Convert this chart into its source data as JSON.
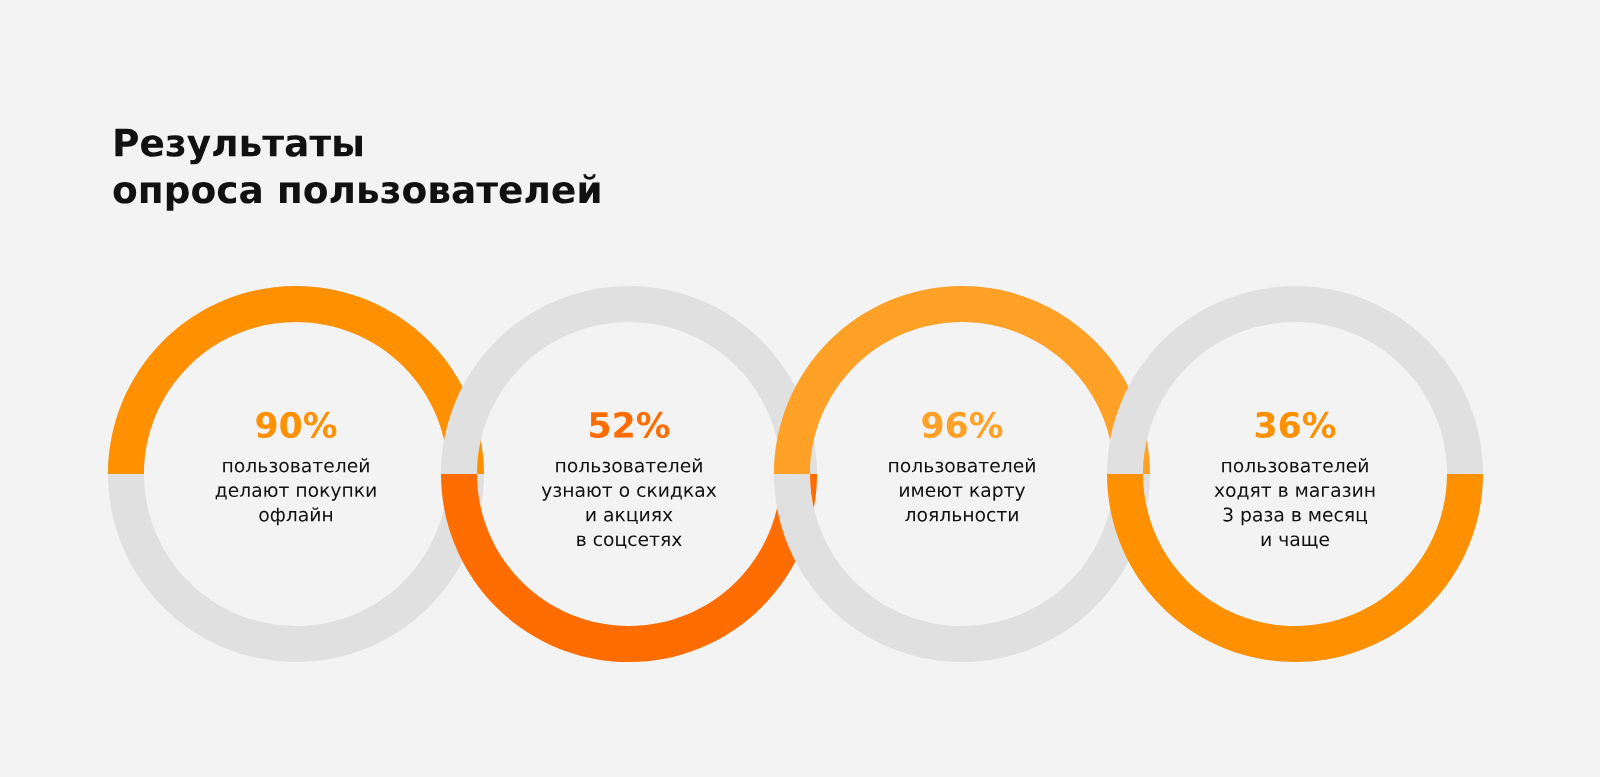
{
  "chart_data": {
    "type": "other",
    "title": "Результаты\nопроса пользователей",
    "categories": [
      "пользователей\nделают покупки\nофлайн",
      "пользователей\nузнают о скидках\nи акциях\nв соцсетях",
      "пользователей\nимеют карту\nлояльности",
      "пользователей\nходят в магазин\n3 раза в месяц\nи чаще"
    ],
    "values": [
      90,
      52,
      96,
      36
    ],
    "value_labels": [
      "90%",
      "52%",
      "96%",
      "36%"
    ],
    "colors": [
      "#ff9100",
      "#ff6d00",
      "#ffa126",
      "#ff9100"
    ],
    "legend": false
  }
}
